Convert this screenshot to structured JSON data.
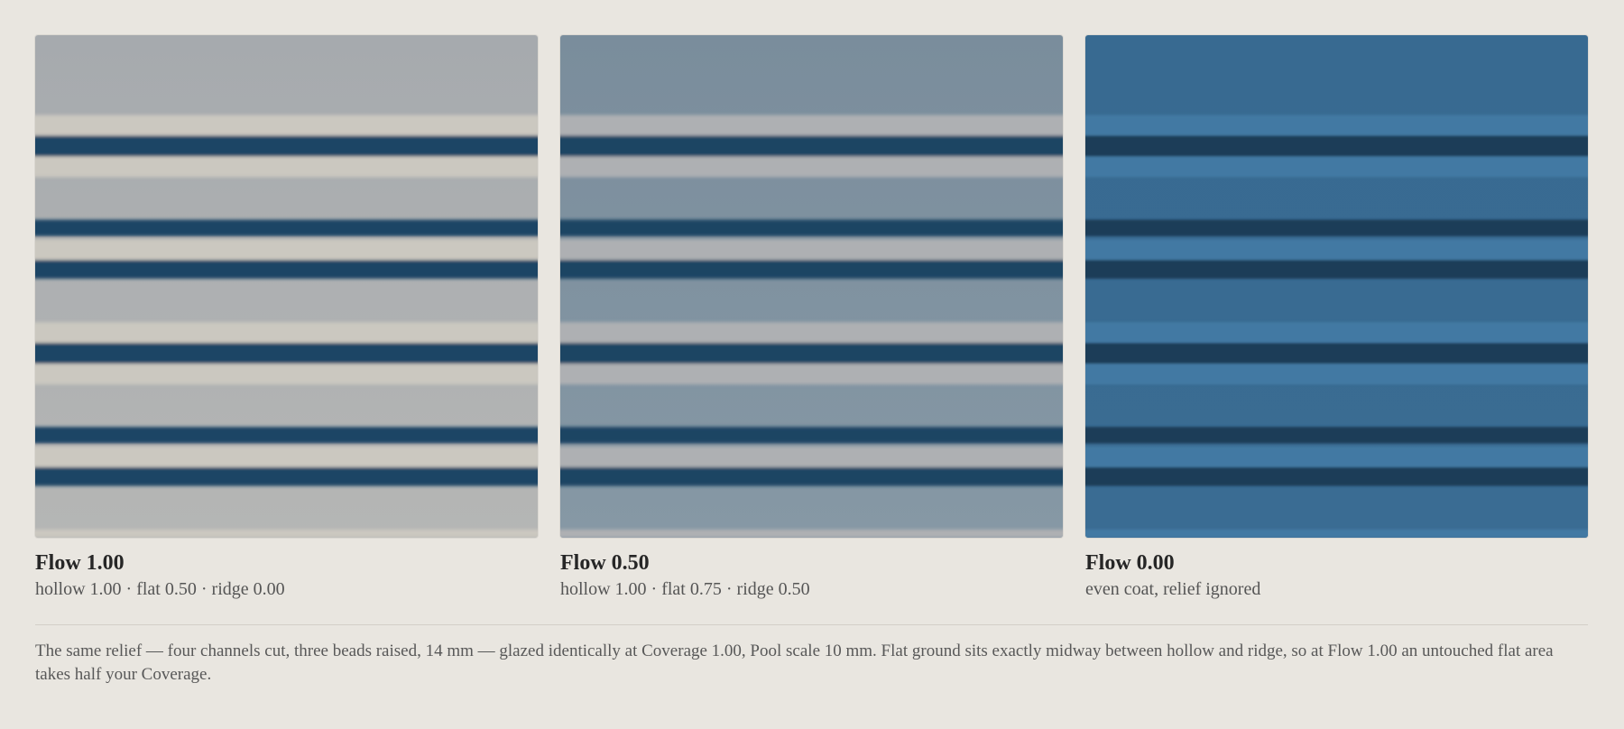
{
  "panels": [
    {
      "title": "Flow 1.00",
      "caption": "hollow 1.00 · flat 0.50 · ridge 0.00"
    },
    {
      "title": "Flow 0.50",
      "caption": "hollow 1.00 · flat 0.75 · ridge 0.50"
    },
    {
      "title": "Flow 0.00",
      "caption": "even coat, relief ignored"
    }
  ],
  "note": "The same relief — four channels cut, three beads raised, 14 mm — glazed identically at Coverage 1.00, Pool scale 10 mm. Flat ground sits exactly midway between hollow and ridge, so at Flow 1.00 an untouched flat area takes half your Coverage."
}
